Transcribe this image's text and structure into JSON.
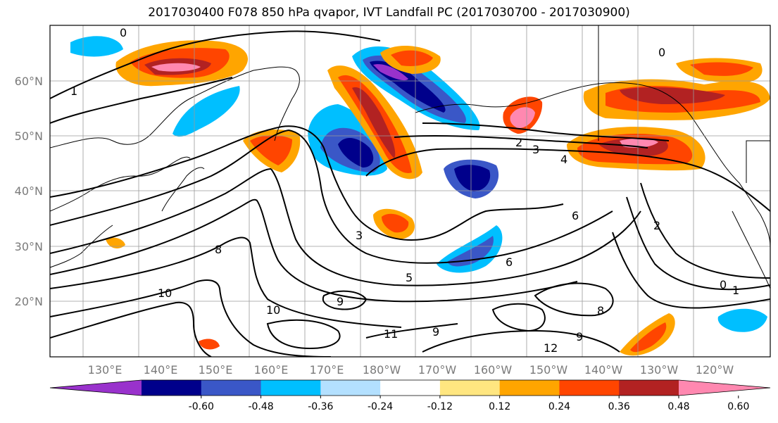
{
  "title": "2017030400 F078 850 hPa qvapor, IVT Landfall PC (2017030700 - 2017030900)",
  "lat_labels": [
    "60°N",
    "50°N",
    "40°N",
    "30°N",
    "20°N"
  ],
  "lon_labels": [
    "130°E",
    "140°E",
    "150°E",
    "160°E",
    "170°E",
    "180°W",
    "170°W",
    "160°W",
    "150°W",
    "140°W",
    "130°W",
    "120°W"
  ],
  "colorbar": {
    "colors": [
      "#9932cc",
      "#00008b",
      "#3a57c7",
      "#00bfff",
      "#b3e0ff",
      "#ffffff",
      "#ffe680",
      "#ffa500",
      "#ff4500",
      "#b22222",
      "#ff88b0"
    ],
    "tick_labels": [
      "-0.60",
      "-0.48",
      "-0.36",
      "-0.24",
      "-0.12",
      "0.12",
      "0.24",
      "0.36",
      "0.48",
      "0.60"
    ]
  },
  "contour_labels": [
    "0",
    "1",
    "2",
    "3",
    "4",
    "5",
    "6",
    "7",
    "8",
    "9",
    "10",
    "11",
    "12"
  ]
}
